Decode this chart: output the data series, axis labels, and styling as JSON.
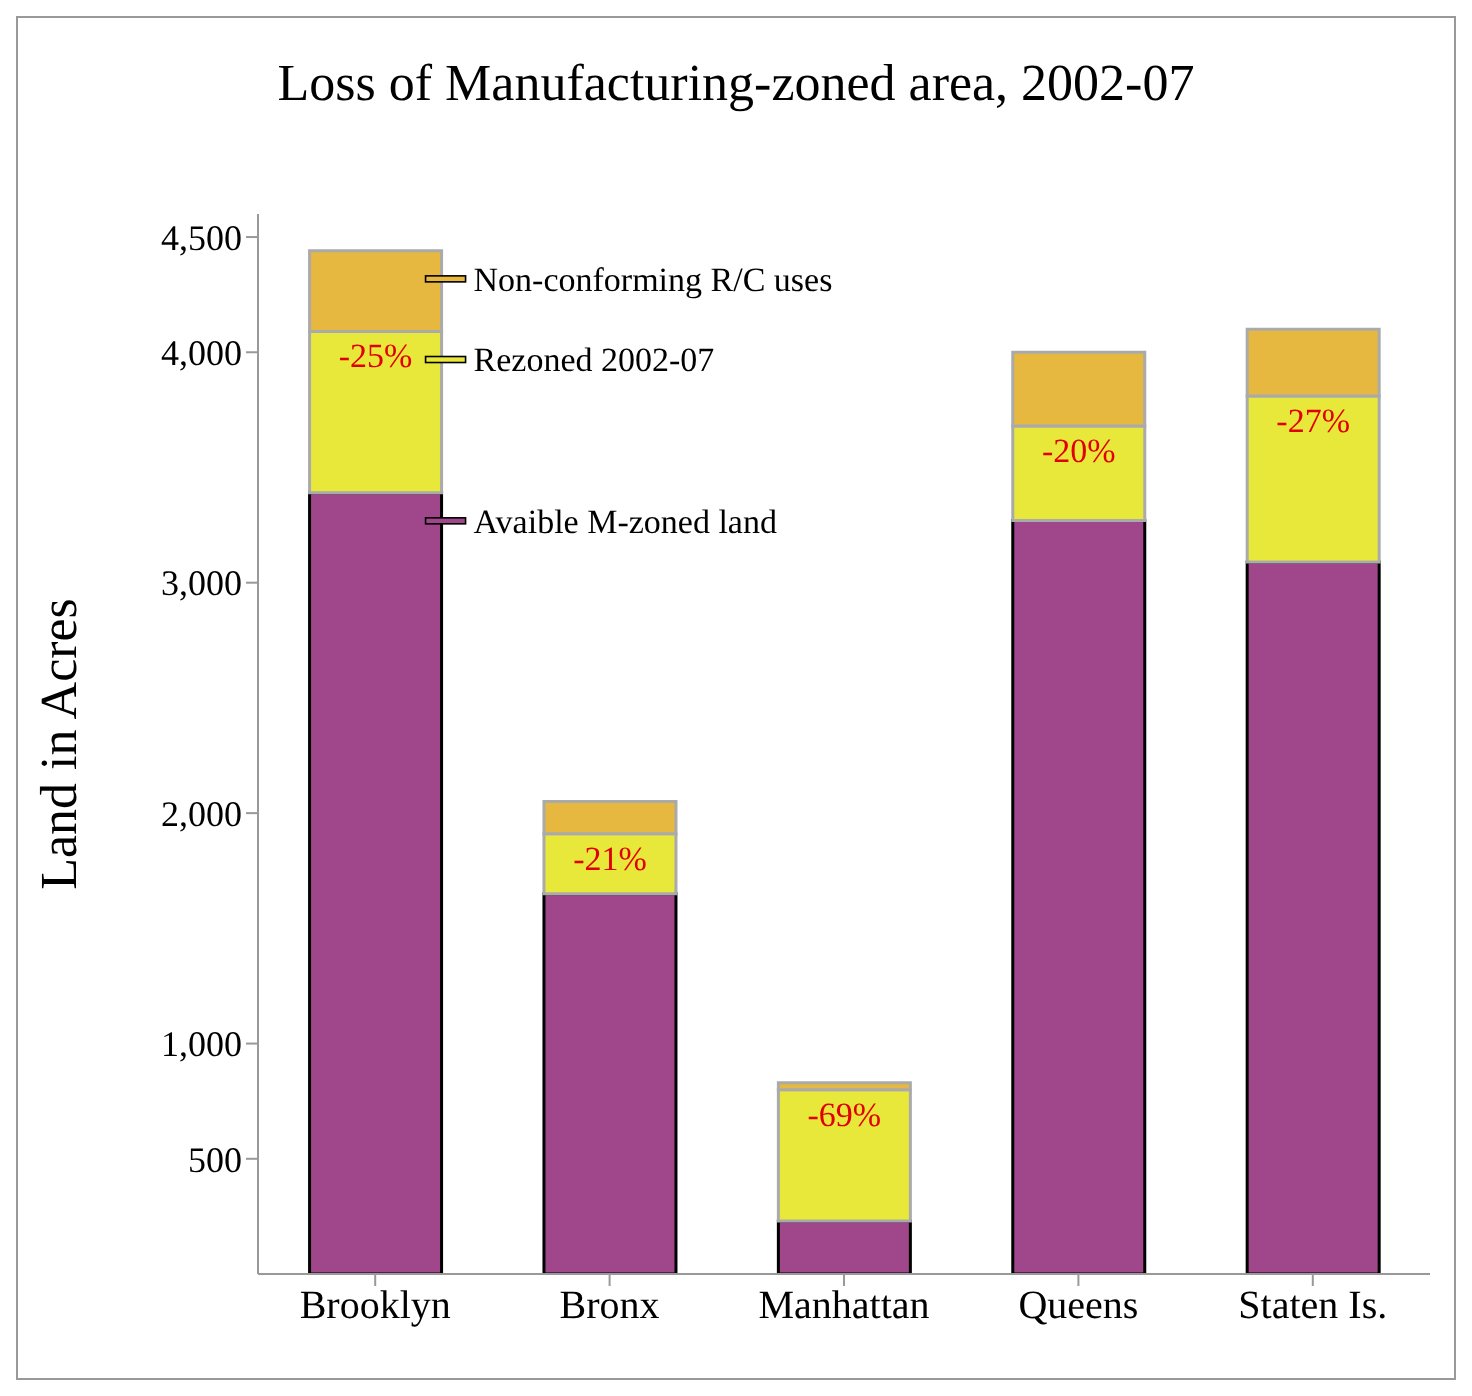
{
  "chart_data": {
    "type": "bar",
    "title": "Loss of Manufacturing-zoned area, 2002-07",
    "ylabel": "Land in Acres",
    "categories": [
      "Brooklyn",
      "Bronx",
      "Manhattan",
      "Queens",
      "Staten Is."
    ],
    "stacked": true,
    "series": [
      {
        "name": "Avaible M-zoned land",
        "color": "#a0478b",
        "values": [
          3390,
          1650,
          230,
          3270,
          3090
        ]
      },
      {
        "name": "Rezoned 2002-07",
        "color": "#e8e83a",
        "values": [
          700,
          260,
          570,
          410,
          720
        ]
      },
      {
        "name": "Non-conforming R/C uses",
        "color": "#e6b840",
        "values": [
          350,
          140,
          30,
          320,
          290
        ]
      }
    ],
    "ylim": [
      0,
      4600
    ],
    "yticks": [
      {
        "value": 500,
        "label": "500"
      },
      {
        "value": 1000,
        "label": "1,000"
      },
      {
        "value": 2000,
        "label": "2,000"
      },
      {
        "value": 3000,
        "label": "3,000"
      },
      {
        "value": 4000,
        "label": "4,000"
      },
      {
        "value": 4500,
        "label": "4,500"
      }
    ],
    "legend": "top left",
    "annotations": [
      "-25%",
      "-21%",
      "-69%",
      "-20%",
      "-27%"
    ]
  }
}
